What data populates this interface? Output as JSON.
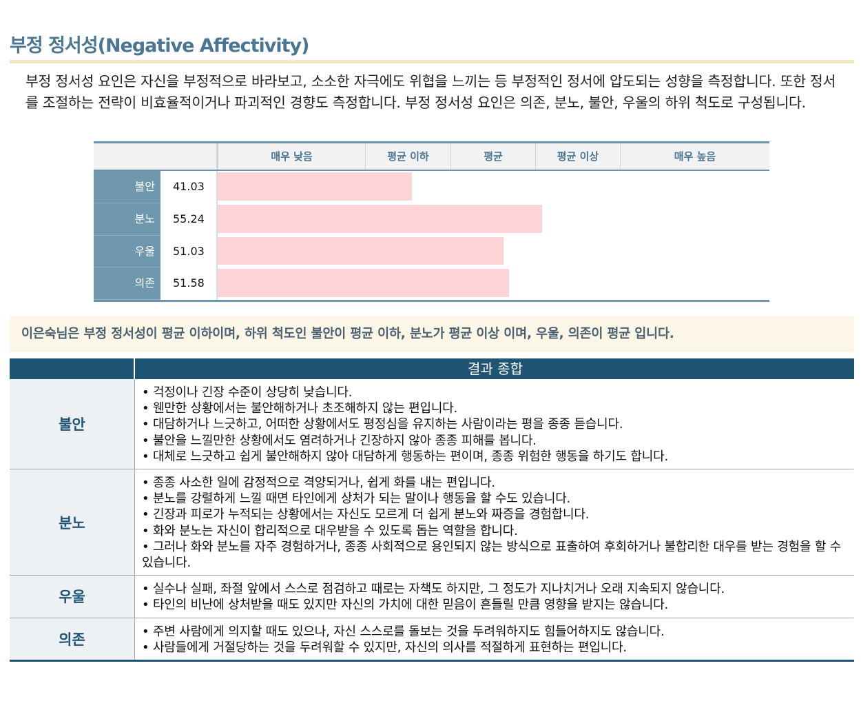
{
  "section": {
    "title": "부정 정서성(Negative Affectivity)",
    "intro": "부정 정서성 요인은 자신을 부정적으로 바라보고, 소소한 자극에도 위협을 느끼는 등 부정적인 정서에 압도되는 성향을 측정합니다. 또한 정서를 조절하는 전략이 비효율적이거나 파괴적인 경향도 측정합니다. 부정 정서성 요인은 의존, 분노, 불안, 우울의 하위 척도로 구성됩니다."
  },
  "chart_data": {
    "type": "bar",
    "orientation": "horizontal",
    "level_headers": [
      "매우 낮음",
      "평균 이하",
      "평균",
      "평균 이상",
      "매우 높음"
    ],
    "categories": [
      "불안",
      "분노",
      "우울",
      "의존"
    ],
    "values": [
      41.03,
      55.24,
      51.03,
      51.58
    ],
    "value_labels": [
      "41.03",
      "55.24",
      "51.03",
      "51.58"
    ],
    "colors": {
      "bar": "#fcd4d6",
      "accent": "#6b93ab"
    }
  },
  "summary": "이은숙님은 부정 정서성이 평균 이하이며, 하위 척도인 불안이 평균 이하, 분노가 평균 이상 이며, 우울, 의존이 평균 입니다.",
  "result": {
    "header": "결과 종합",
    "rows": [
      {
        "label": "불안",
        "items": [
          "• 걱정이나 긴장 수준이 상당히 낮습니다.",
          "• 웬만한 상황에서는 불안해하거나 초조해하지 않는 편입니다.",
          "• 대담하거나 느긋하고, 어떠한 상황에서도 평정심을 유지하는 사람이라는 평을 종종 듣습니다.",
          "• 불안을 느낄만한 상황에서도 염려하거나 긴장하지 않아 종종 피해를 봅니다.",
          "• 대체로 느긋하고 쉽게 불안해하지 않아 대담하게 행동하는 편이며, 종종 위험한 행동을 하기도 합니다."
        ]
      },
      {
        "label": "분노",
        "items": [
          "• 종종 사소한 일에 감정적으로 격양되거나, 쉽게 화를 내는 편입니다.",
          "• 분노를 강렬하게 느낄 때면 타인에게 상처가 되는 말이나 행동을 할 수도 있습니다.",
          "• 긴장과 피로가 누적되는 상황에서는 자신도 모르게 더 쉽게 분노와 짜증을 경험합니다.",
          "• 화와 분노는 자신이 합리적으로 대우받을 수 있도록 돕는 역할을 합니다.",
          "• 그러나 화와 분노를 자주 경험하거나, 종종 사회적으로 용인되지 않는 방식으로 표출하여 후회하거나 불합리한 대우를 받는 경험을 할 수 있습니다."
        ]
      },
      {
        "label": "우울",
        "items": [
          "• 실수나 실패, 좌절 앞에서 스스로 점검하고 때로는 자책도 하지만, 그 정도가 지나치거나 오래 지속되지 않습니다.",
          "• 타인의 비난에 상처받을 때도 있지만 자신의 가치에 대한 믿음이 흔들릴 만큼 영향을 받지는 않습니다."
        ]
      },
      {
        "label": "의존",
        "items": [
          "• 주변 사람에게 의지할 때도 있으나, 자신 스스로를 돌보는 것을 두려워하지도 힘들어하지도 않습니다.",
          "• 사람들에게 거절당하는 것을 두려워할 수 있지만, 자신의 의사를 적절하게 표현하는 편입니다."
        ]
      }
    ]
  }
}
